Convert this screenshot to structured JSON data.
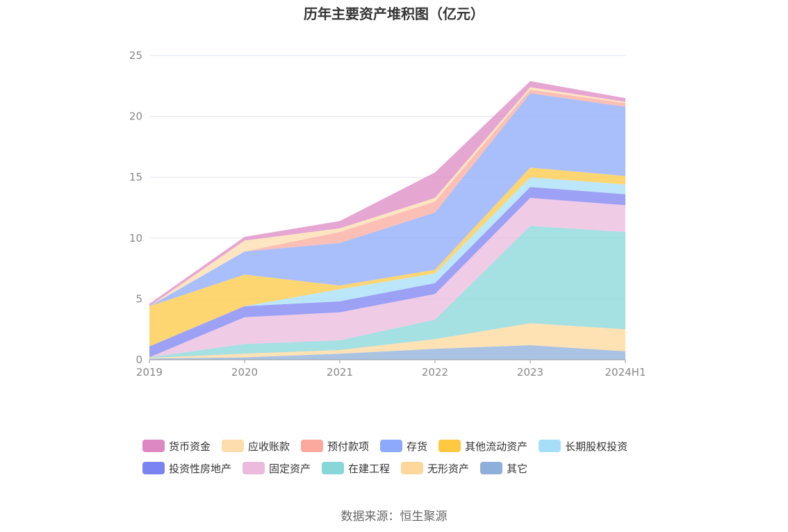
{
  "chart_data": {
    "type": "area",
    "stacked": true,
    "title": "历年主要资产堆积图（亿元）",
    "x": [
      "2019",
      "2020",
      "2021",
      "2022",
      "2023",
      "2024H1"
    ],
    "ylim": [
      0,
      25
    ],
    "yticks": [
      0,
      5,
      10,
      15,
      20,
      25
    ],
    "grid": true,
    "legend_position": "bottom",
    "series": [
      {
        "name": "其它",
        "color": "#8eafd9",
        "values": [
          0.1,
          0.2,
          0.5,
          0.9,
          1.2,
          0.7
        ]
      },
      {
        "name": "无形资产",
        "color": "#fdd89a",
        "values": [
          0.05,
          0.3,
          0.3,
          0.8,
          1.8,
          1.8
        ]
      },
      {
        "name": "在建工程",
        "color": "#87d6d8",
        "values": [
          0.05,
          0.8,
          0.8,
          1.6,
          8.0,
          8.0
        ]
      },
      {
        "name": "固定资产",
        "color": "#ebbadd",
        "values": [
          0.0,
          2.2,
          2.3,
          2.1,
          2.3,
          2.2
        ]
      },
      {
        "name": "投资性房地产",
        "color": "#7b82f2",
        "values": [
          0.9,
          0.9,
          0.9,
          0.9,
          0.9,
          0.9
        ]
      },
      {
        "name": "长期股权投资",
        "color": "#a6def7",
        "values": [
          0.0,
          0.0,
          1.0,
          0.8,
          0.8,
          0.8
        ]
      },
      {
        "name": "其他流动资产",
        "color": "#fec841",
        "values": [
          3.3,
          2.6,
          0.3,
          0.3,
          0.8,
          0.7
        ]
      },
      {
        "name": "存货",
        "color": "#8ca9fb",
        "values": [
          0.0,
          1.9,
          3.5,
          4.7,
          6.1,
          5.7
        ]
      },
      {
        "name": "预付款项",
        "color": "#fba99e",
        "values": [
          0.0,
          0.0,
          0.9,
          0.9,
          0.3,
          0.3
        ]
      },
      {
        "name": "应收账款",
        "color": "#fddcad",
        "values": [
          0.0,
          0.9,
          0.3,
          0.3,
          0.2,
          0.1
        ]
      },
      {
        "name": "货币资金",
        "color": "#de88c3",
        "values": [
          0.2,
          0.3,
          0.6,
          2.1,
          0.5,
          0.3
        ]
      }
    ]
  },
  "legend_order": [
    "货币资金",
    "应收账款",
    "预付款项",
    "存货",
    "其他流动资产",
    "长期股权投资",
    "投资性房地产",
    "固定资产",
    "在建工程",
    "无形资产",
    "其它"
  ],
  "source": "数据来源：恒生聚源"
}
